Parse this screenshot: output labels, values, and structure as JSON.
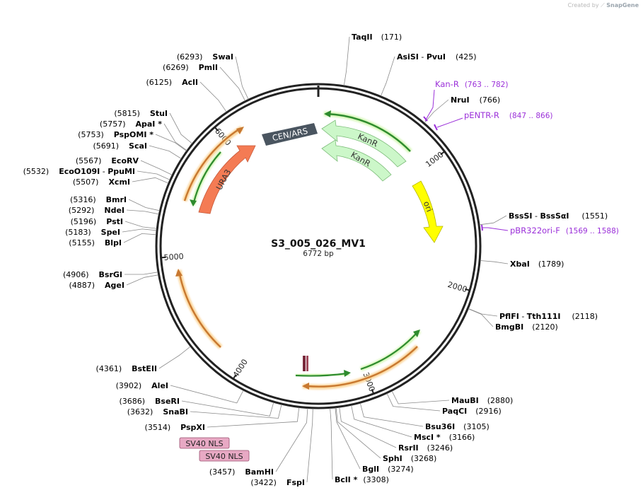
{
  "credit": {
    "prefix": "Created by",
    "brand": "SnapGene"
  },
  "plasmid": {
    "name": "S3_005_026_MV1",
    "length_label": "6772 bp",
    "length_bp": 6772
  },
  "ticks": [
    {
      "label": "1000",
      "bp": 1000
    },
    {
      "label": "2000",
      "bp": 2000
    },
    {
      "label": "3000",
      "bp": 3000
    },
    {
      "label": "4000",
      "bp": 4000
    },
    {
      "label": "5000",
      "bp": 5000
    },
    {
      "label": "6000",
      "bp": 6000
    }
  ],
  "enzymes": [
    {
      "name": "TaqII",
      "pos": "(171)",
      "bp": 171,
      "suffix": ""
    },
    {
      "name": "AsiSI",
      "sep": " - ",
      "name2": "PvuI",
      "pos": "(425)",
      "bp": 425
    },
    {
      "name": "NruI",
      "pos": "(766)",
      "bp": 766
    },
    {
      "name": "BssSI",
      "sep": " - ",
      "name2": "BssSαI",
      "pos": "(1551)",
      "bp": 1551
    },
    {
      "name": "XbaI",
      "pos": "(1789)",
      "bp": 1789
    },
    {
      "name": "PflFI",
      "sep": " - ",
      "name2": "Tth111I",
      "pos": "(2118)",
      "bp": 2118
    },
    {
      "name": "BmgBI",
      "pos": "(2120)",
      "bp": 2120
    },
    {
      "name": "MauBI",
      "pos": "(2880)",
      "bp": 2880
    },
    {
      "name": "PaqCI",
      "pos": "(2916)",
      "bp": 2916
    },
    {
      "name": "Bsu36I",
      "pos": "(3105)",
      "bp": 3105
    },
    {
      "name": "MscI *",
      "pos": "(3166)",
      "bp": 3166
    },
    {
      "name": "RsrII",
      "pos": "(3246)",
      "bp": 3246
    },
    {
      "name": "SphI",
      "pos": "(3268)",
      "bp": 3268
    },
    {
      "name": "BglI",
      "pos": "(3274)",
      "bp": 3274
    },
    {
      "name": "BclI *",
      "pos": "(3308)",
      "bp": 3308
    },
    {
      "name": "FspI",
      "pos": "(3422)",
      "bp": 3422
    },
    {
      "name": "BamHI",
      "pos": "(3457)",
      "bp": 3457
    },
    {
      "name": "PspXI",
      "pos": "(3514)",
      "bp": 3514
    },
    {
      "name": "SnaBI",
      "pos": "(3632)",
      "bp": 3632
    },
    {
      "name": "BseRI",
      "pos": "(3686)",
      "bp": 3686
    },
    {
      "name": "AleI",
      "pos": "(3902)",
      "bp": 3902
    },
    {
      "name": "BstEII",
      "pos": "(4361)",
      "bp": 4361
    },
    {
      "name": "AgeI",
      "pos": "(4887)",
      "bp": 4887
    },
    {
      "name": "BsrGI",
      "pos": "(4906)",
      "bp": 4906
    },
    {
      "name": "BlpI",
      "pos": "(5155)",
      "bp": 5155
    },
    {
      "name": "SpeI",
      "pos": "(5183)",
      "bp": 5183
    },
    {
      "name": "PstI",
      "pos": "(5196)",
      "bp": 5196
    },
    {
      "name": "NdeI",
      "pos": "(5292)",
      "bp": 5292
    },
    {
      "name": "BmrI",
      "pos": "(5316)",
      "bp": 5316
    },
    {
      "name": "XcmI",
      "pos": "(5507)",
      "bp": 5507
    },
    {
      "name": "EcoO109I",
      "sep": " - ",
      "name2": "PpuMI",
      "pos": "(5532)",
      "bp": 5532
    },
    {
      "name": "EcoRV",
      "pos": "(5567)",
      "bp": 5567
    },
    {
      "name": "ScaI",
      "pos": "(5691)",
      "bp": 5691
    },
    {
      "name": "PspOMI *",
      "pos": "(5753)",
      "bp": 5753
    },
    {
      "name": "ApaI *",
      "pos": "(5757)",
      "bp": 5757
    },
    {
      "name": "StuI",
      "pos": "(5815)",
      "bp": 5815
    },
    {
      "name": "AclI",
      "pos": "(6125)",
      "bp": 6125
    },
    {
      "name": "PmlI",
      "pos": "(6269)",
      "bp": 6269
    },
    {
      "name": "SwaI",
      "pos": "(6293)",
      "bp": 6293
    }
  ],
  "primers": [
    {
      "name": "Kan-R",
      "range": "(763 .. 782)",
      "start": 763,
      "end": 782
    },
    {
      "name": "pENTR-R",
      "range": "(847 .. 866)",
      "start": 847,
      "end": 866
    },
    {
      "name": "pBR322ori-F",
      "range": "(1569 .. 1588)",
      "start": 1569,
      "end": 1588
    }
  ],
  "features": [
    {
      "name": "CEN/ARS",
      "color": "#4a5560",
      "text_color": "#ffffff"
    },
    {
      "name": "KanR",
      "color": "#ccf7c9",
      "text_color": "#333333"
    },
    {
      "name": "KanR",
      "color": "#ccf7c9",
      "text_color": "#333333"
    },
    {
      "name": "ori",
      "color": "#ffff00",
      "text_color": "#333333"
    },
    {
      "name": "URA3",
      "color": "#f47b54",
      "text_color": "#333333"
    }
  ],
  "boxed_labels": [
    {
      "name": "SV40 NLS",
      "color": "#e8a9c4"
    },
    {
      "name": "SV40 NLS",
      "color": "#e8a9c4"
    }
  ],
  "colors": {
    "primer": "#9b30d9",
    "orf_green": "#2e8b2e",
    "orf_orange": "#c87830",
    "glow_green": "#d4f7b5",
    "glow_orange": "#fbd59a",
    "nls_mark": "#7a2a3c"
  }
}
